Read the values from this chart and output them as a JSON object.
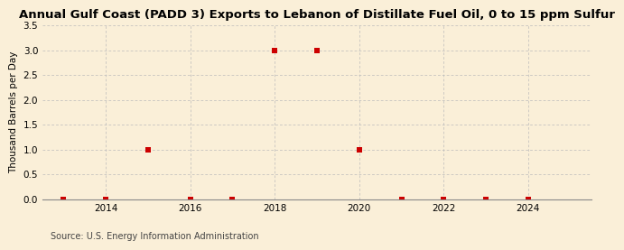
{
  "title": "Annual Gulf Coast (PADD 3) Exports to Lebanon of Distillate Fuel Oil, 0 to 15 ppm Sulfur",
  "ylabel": "Thousand Barrels per Day",
  "source": "Source: U.S. Energy Information Administration",
  "background_color": "#faefd8",
  "plot_bg_color": "#faefd8",
  "x_data": [
    2013,
    2014,
    2015,
    2016,
    2017,
    2018,
    2019,
    2020,
    2021,
    2022,
    2023,
    2024
  ],
  "y_data": [
    0.0,
    0.0,
    1.0,
    0.0,
    0.0,
    3.0,
    3.0,
    1.0,
    0.0,
    0.0,
    0.0,
    0.0
  ],
  "marker_color": "#cc0000",
  "marker_size": 4,
  "xlim": [
    2012.5,
    2025.5
  ],
  "ylim": [
    0.0,
    3.5
  ],
  "yticks": [
    0.0,
    0.5,
    1.0,
    1.5,
    2.0,
    2.5,
    3.0,
    3.5
  ],
  "xticks": [
    2014,
    2016,
    2018,
    2020,
    2022,
    2024
  ],
  "title_fontsize": 9.5,
  "label_fontsize": 7.5,
  "tick_fontsize": 7.5,
  "source_fontsize": 7.0
}
